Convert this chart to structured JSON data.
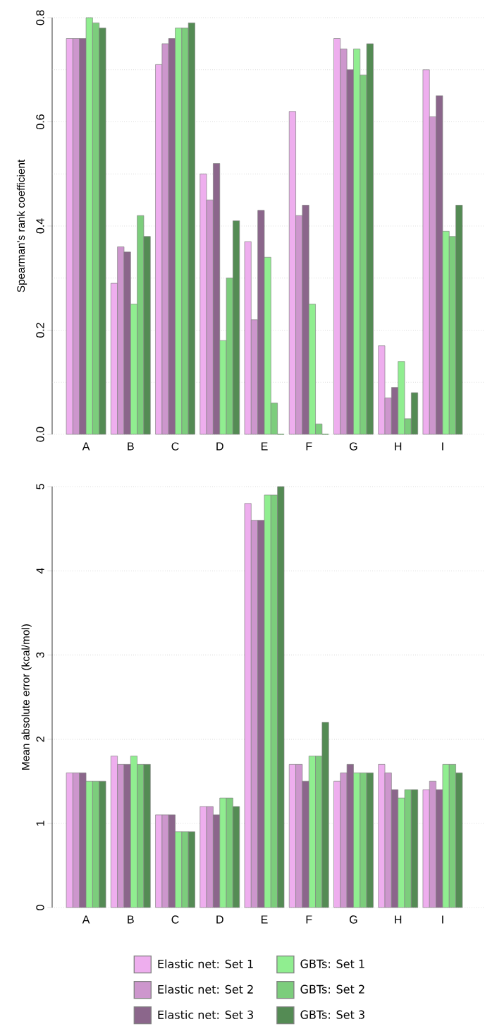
{
  "chart_data": [
    {
      "type": "bar",
      "ylabel": "Spearman's rank coefficient",
      "categories": [
        "A",
        "B",
        "C",
        "D",
        "E",
        "F",
        "G",
        "H",
        "I"
      ],
      "ylim": [
        0,
        0.8
      ],
      "yticks": [
        {
          "value": 0,
          "label": "0.0"
        },
        {
          "value": 0.1,
          "label": null
        },
        0.2,
        {
          "value": 0.3,
          "label": null
        },
        0.4,
        {
          "value": 0.5,
          "label": null
        },
        0.6,
        {
          "value": 0.7,
          "label": null
        },
        0.8
      ],
      "grid": "y",
      "series": [
        {
          "color": "#eeaeee",
          "values": [
            0.76,
            0.29,
            0.71,
            0.5,
            0.37,
            0.62,
            0.76,
            0.17,
            0.7
          ]
        },
        {
          "color": "#cd96cd",
          "values": [
            0.76,
            0.36,
            0.75,
            0.45,
            0.22,
            0.42,
            0.74,
            0.07,
            0.61
          ]
        },
        {
          "color": "#8b668b",
          "values": [
            0.76,
            0.35,
            0.76,
            0.52,
            0.43,
            0.44,
            0.7,
            0.09,
            0.65
          ]
        },
        {
          "color": "#90ee90",
          "values": [
            0.8,
            0.25,
            0.78,
            0.18,
            0.34,
            0.25,
            0.74,
            0.14,
            0.39
          ]
        },
        {
          "color": "#7ccd7c",
          "values": [
            0.79,
            0.42,
            0.78,
            0.3,
            0.06,
            0.02,
            0.69,
            0.03,
            0.38
          ]
        },
        {
          "color": "#548b54",
          "values": [
            0.78,
            0.38,
            0.79,
            0.41,
            0.0,
            0.0,
            0.75,
            0.08,
            0.44
          ]
        }
      ]
    },
    {
      "type": "bar",
      "ylabel": "Mean absolute error (kcal/mol)",
      "categories": [
        "A",
        "B",
        "C",
        "D",
        "E",
        "F",
        "G",
        "H",
        "I"
      ],
      "ylim": [
        0,
        5
      ],
      "yticks": [
        0,
        1,
        2,
        3,
        4,
        5
      ],
      "grid": "y",
      "legend": "bottom",
      "series": [
        {
          "name": "Elastic net: Set 1",
          "color": "#eeaeee",
          "values": [
            1.6,
            1.8,
            1.1,
            1.2,
            4.8,
            1.7,
            1.5,
            1.7,
            1.4
          ]
        },
        {
          "name": "Elastic net: Set 2",
          "color": "#cd96cd",
          "values": [
            1.6,
            1.7,
            1.1,
            1.2,
            4.6,
            1.7,
            1.6,
            1.6,
            1.5
          ]
        },
        {
          "name": "Elastic net: Set 3",
          "color": "#8b668b",
          "values": [
            1.6,
            1.7,
            1.1,
            1.1,
            4.6,
            1.5,
            1.7,
            1.4,
            1.4
          ]
        },
        {
          "name": "GBTs: Set 1",
          "color": "#90ee90",
          "values": [
            1.5,
            1.8,
            0.9,
            1.3,
            4.9,
            1.8,
            1.6,
            1.3,
            1.7
          ]
        },
        {
          "name": "GBTs: Set 2",
          "color": "#7ccd7c",
          "values": [
            1.5,
            1.7,
            0.9,
            1.3,
            4.9,
            1.8,
            1.6,
            1.4,
            1.7
          ]
        },
        {
          "name": "GBTs: Set 3",
          "color": "#548b54",
          "values": [
            1.5,
            1.7,
            0.9,
            1.2,
            5.0,
            2.2,
            1.6,
            1.4,
            1.6
          ]
        }
      ]
    }
  ]
}
